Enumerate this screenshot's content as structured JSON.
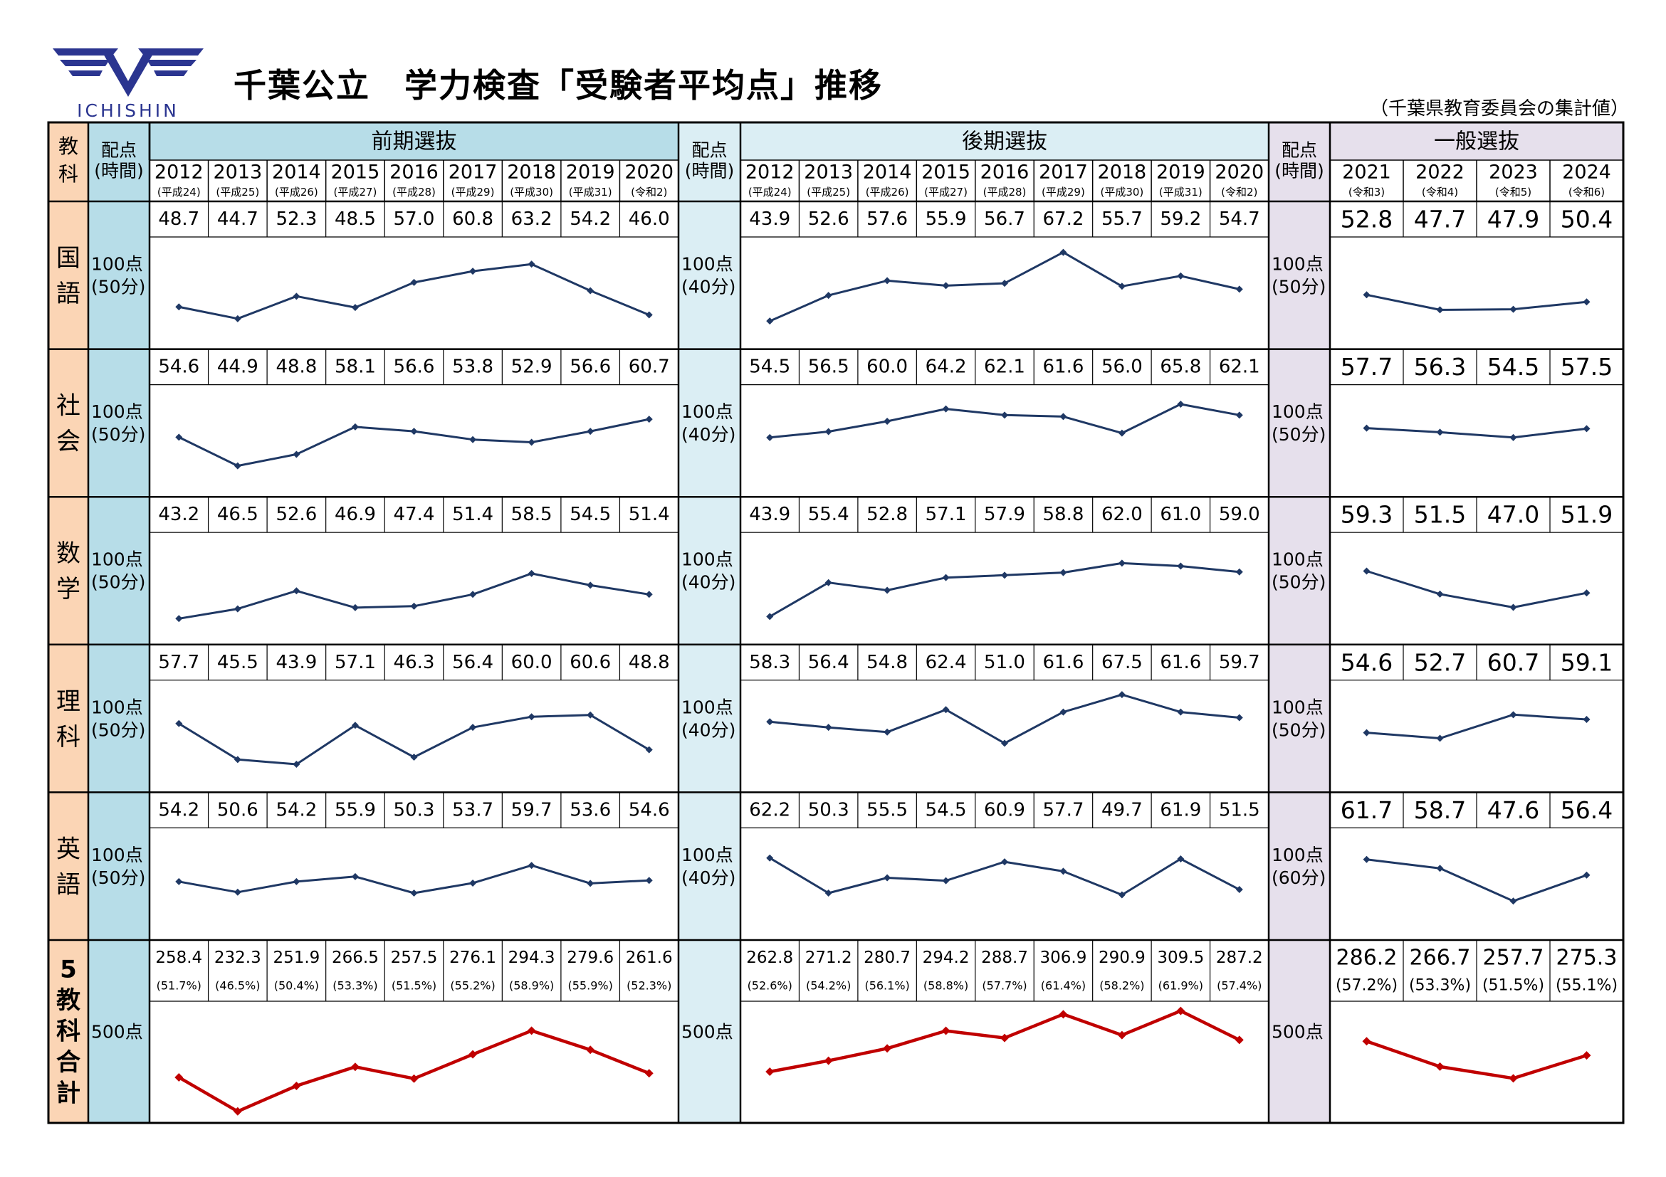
{
  "logo": {
    "text": "ICHISHIN",
    "color": "#2b3590"
  },
  "title": "千葉公立　学力検査「受験者平均点」推移",
  "note": "（千葉県教育委員会の集計値）",
  "colors": {
    "subject_bg": "#fbd5b5",
    "zenki_bg": "#b7dde8",
    "kouki_bg": "#dbeef4",
    "ippan_bg": "#e6e0ec",
    "line": "#1f3864",
    "total_line": "#c00000"
  },
  "headers": {
    "subject": "教科",
    "haiten": "配点",
    "jikan": "(時間)",
    "zenki": "前期選抜",
    "kouki": "後期選抜",
    "ippan": "一般選抜"
  },
  "years": {
    "zenki": [
      {
        "y": "2012",
        "era": "(平成24)"
      },
      {
        "y": "2013",
        "era": "(平成25)"
      },
      {
        "y": "2014",
        "era": "(平成26)"
      },
      {
        "y": "2015",
        "era": "(平成27)"
      },
      {
        "y": "2016",
        "era": "(平成28)"
      },
      {
        "y": "2017",
        "era": "(平成29)"
      },
      {
        "y": "2018",
        "era": "(平成30)"
      },
      {
        "y": "2019",
        "era": "(平成31)"
      },
      {
        "y": "2020",
        "era": "(令和2)"
      }
    ],
    "kouki": [
      {
        "y": "2012",
        "era": "(平成24)"
      },
      {
        "y": "2013",
        "era": "(平成25)"
      },
      {
        "y": "2014",
        "era": "(平成26)"
      },
      {
        "y": "2015",
        "era": "(平成27)"
      },
      {
        "y": "2016",
        "era": "(平成28)"
      },
      {
        "y": "2017",
        "era": "(平成29)"
      },
      {
        "y": "2018",
        "era": "(平成30)"
      },
      {
        "y": "2019",
        "era": "(平成31)"
      },
      {
        "y": "2020",
        "era": "(令和2)"
      }
    ],
    "ippan": [
      {
        "y": "2021",
        "era": "(令和3)"
      },
      {
        "y": "2022",
        "era": "(令和4)"
      },
      {
        "y": "2023",
        "era": "(令和5)"
      },
      {
        "y": "2024",
        "era": "(令和6)"
      }
    ]
  },
  "chart_data": {
    "type": "line",
    "title": "千葉公立　学力検査「受験者平均点」推移",
    "subjects": [
      {
        "name": "国語",
        "zenki": {
          "haiten": "100点",
          "jikan": "(50分)",
          "values": [
            48.7,
            44.7,
            52.3,
            48.5,
            57.0,
            60.8,
            63.2,
            54.2,
            46.0
          ]
        },
        "kouki": {
          "haiten": "100点",
          "jikan": "(40分)",
          "values": [
            43.9,
            52.6,
            57.6,
            55.9,
            56.7,
            67.2,
            55.7,
            59.2,
            54.7
          ]
        },
        "ippan": {
          "haiten": "100点",
          "jikan": "(50分)",
          "values": [
            52.8,
            47.7,
            47.9,
            50.4
          ]
        }
      },
      {
        "name": "社会",
        "zenki": {
          "haiten": "100点",
          "jikan": "(50分)",
          "values": [
            54.6,
            44.9,
            48.8,
            58.1,
            56.6,
            53.8,
            52.9,
            56.6,
            60.7
          ]
        },
        "kouki": {
          "haiten": "100点",
          "jikan": "(40分)",
          "values": [
            54.5,
            56.5,
            60.0,
            64.2,
            62.1,
            61.6,
            56.0,
            65.8,
            62.1
          ]
        },
        "ippan": {
          "haiten": "100点",
          "jikan": "(50分)",
          "values": [
            57.7,
            56.3,
            54.5,
            57.5
          ]
        }
      },
      {
        "name": "数学",
        "zenki": {
          "haiten": "100点",
          "jikan": "(50分)",
          "values": [
            43.2,
            46.5,
            52.6,
            46.9,
            47.4,
            51.4,
            58.5,
            54.5,
            51.4
          ]
        },
        "kouki": {
          "haiten": "100点",
          "jikan": "(40分)",
          "values": [
            43.9,
            55.4,
            52.8,
            57.1,
            57.9,
            58.8,
            62.0,
            61.0,
            59.0
          ]
        },
        "ippan": {
          "haiten": "100点",
          "jikan": "(50分)",
          "values": [
            59.3,
            51.5,
            47.0,
            51.9
          ]
        }
      },
      {
        "name": "理科",
        "zenki": {
          "haiten": "100点",
          "jikan": "(50分)",
          "values": [
            57.7,
            45.5,
            43.9,
            57.1,
            46.3,
            56.4,
            60.0,
            60.6,
            48.8
          ]
        },
        "kouki": {
          "haiten": "100点",
          "jikan": "(40分)",
          "values": [
            58.3,
            56.4,
            54.8,
            62.4,
            51.0,
            61.6,
            67.5,
            61.6,
            59.7
          ]
        },
        "ippan": {
          "haiten": "100点",
          "jikan": "(50分)",
          "values": [
            54.6,
            52.7,
            60.7,
            59.1
          ]
        }
      },
      {
        "name": "英語",
        "zenki": {
          "haiten": "100点",
          "jikan": "(50分)",
          "values": [
            54.2,
            50.6,
            54.2,
            55.9,
            50.3,
            53.7,
            59.7,
            53.6,
            54.6
          ]
        },
        "kouki": {
          "haiten": "100点",
          "jikan": "(40分)",
          "values": [
            62.2,
            50.3,
            55.5,
            54.5,
            60.9,
            57.7,
            49.7,
            61.9,
            51.5
          ]
        },
        "ippan": {
          "haiten": "100点",
          "jikan": "(60分)",
          "values": [
            61.7,
            58.7,
            47.6,
            56.4
          ]
        }
      }
    ],
    "total": {
      "name": "5教科合計",
      "zenki": {
        "haiten": "500点",
        "values": [
          258.4,
          232.3,
          251.9,
          266.5,
          257.5,
          276.1,
          294.3,
          279.6,
          261.6
        ],
        "pct": [
          "(51.7%)",
          "(46.5%)",
          "(50.4%)",
          "(53.3%)",
          "(51.5%)",
          "(55.2%)",
          "(58.9%)",
          "(55.9%)",
          "(52.3%)"
        ]
      },
      "kouki": {
        "haiten": "500点",
        "values": [
          262.8,
          271.2,
          280.7,
          294.2,
          288.7,
          306.9,
          290.9,
          309.5,
          287.2
        ],
        "pct": [
          "(52.6%)",
          "(54.2%)",
          "(56.1%)",
          "(58.8%)",
          "(57.7%)",
          "(61.4%)",
          "(58.2%)",
          "(61.9%)",
          "(57.4%)"
        ]
      },
      "ippan": {
        "haiten": "500点",
        "values": [
          286.2,
          266.7,
          257.7,
          275.3
        ],
        "pct": [
          "(57.2%)",
          "(53.3%)",
          "(51.5%)",
          "(55.1%)"
        ]
      }
    }
  }
}
